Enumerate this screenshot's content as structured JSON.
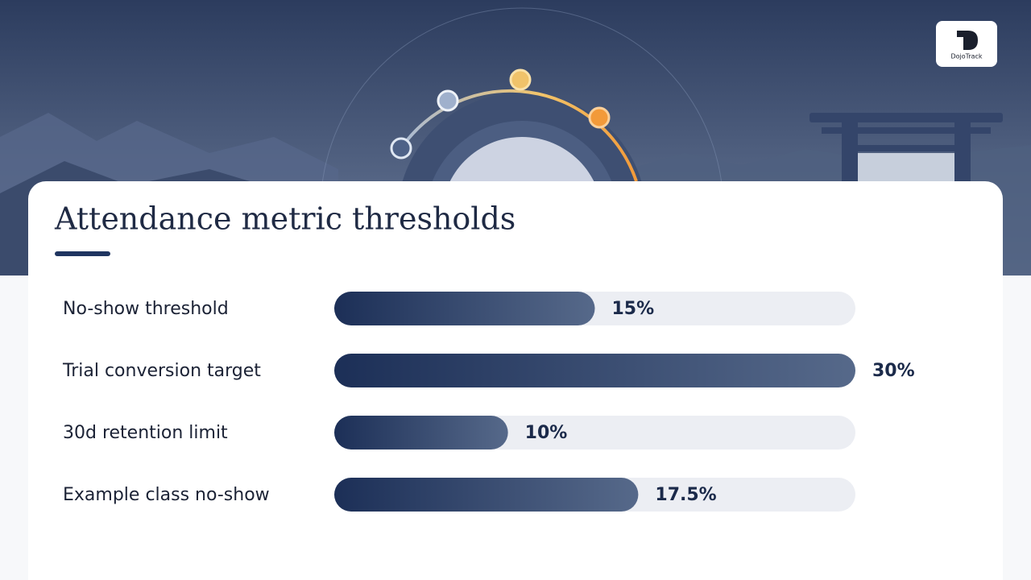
{
  "brand": "DojoTrack",
  "chart_data": {
    "type": "bar",
    "orientation": "horizontal",
    "title": "Attendance metric thresholds",
    "categories": [
      "No-show threshold",
      "Trial conversion target",
      "30d retention limit",
      "Example class no-show"
    ],
    "values": [
      15,
      30,
      10,
      17.5
    ],
    "value_labels": [
      "15%",
      "30%",
      "10%",
      "17.5%"
    ],
    "color": "#1c2f57",
    "xlim": [
      0,
      30
    ]
  }
}
